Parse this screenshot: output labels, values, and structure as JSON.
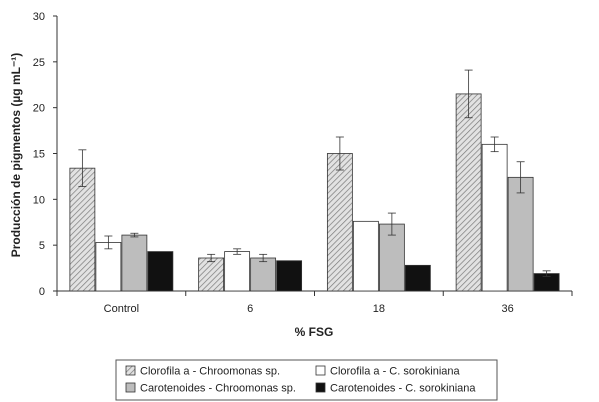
{
  "chart_data": {
    "type": "bar",
    "categories": [
      "Control",
      "6",
      "18",
      "36"
    ],
    "series": [
      {
        "name": "Clorofila a - Chroomonas sp.",
        "values": [
          13.4,
          3.6,
          15.0,
          21.5
        ],
        "errors": [
          2.0,
          0.4,
          1.8,
          2.6
        ],
        "style": "hatch",
        "color": "#d4d4d4"
      },
      {
        "name": "Clorofila a - C. sorokiniana",
        "values": [
          5.3,
          4.3,
          7.6,
          16.0
        ],
        "errors": [
          0.7,
          0.3,
          0.0,
          0.8
        ],
        "style": "solid",
        "color": "#ffffff"
      },
      {
        "name": "Carotenoides - Chroomonas sp.",
        "values": [
          6.1,
          3.6,
          7.3,
          12.4
        ],
        "errors": [
          0.2,
          0.4,
          1.2,
          1.7
        ],
        "style": "solid",
        "color": "#bdbdbd"
      },
      {
        "name": "Carotenoides - C. sorokiniana",
        "values": [
          4.3,
          3.3,
          2.8,
          1.9
        ],
        "errors": [
          0.0,
          0.0,
          0.0,
          0.3
        ],
        "style": "solid",
        "color": "#111111"
      }
    ],
    "title": "",
    "xlabel": "% FSG",
    "ylabel": "Producción de pigmentos (µg mL⁻¹)",
    "ylim": [
      0,
      30
    ],
    "yticks": [
      "0",
      "5",
      "10",
      "15",
      "20",
      "25",
      "30"
    ],
    "grid": false,
    "legend_position": "bottom"
  }
}
